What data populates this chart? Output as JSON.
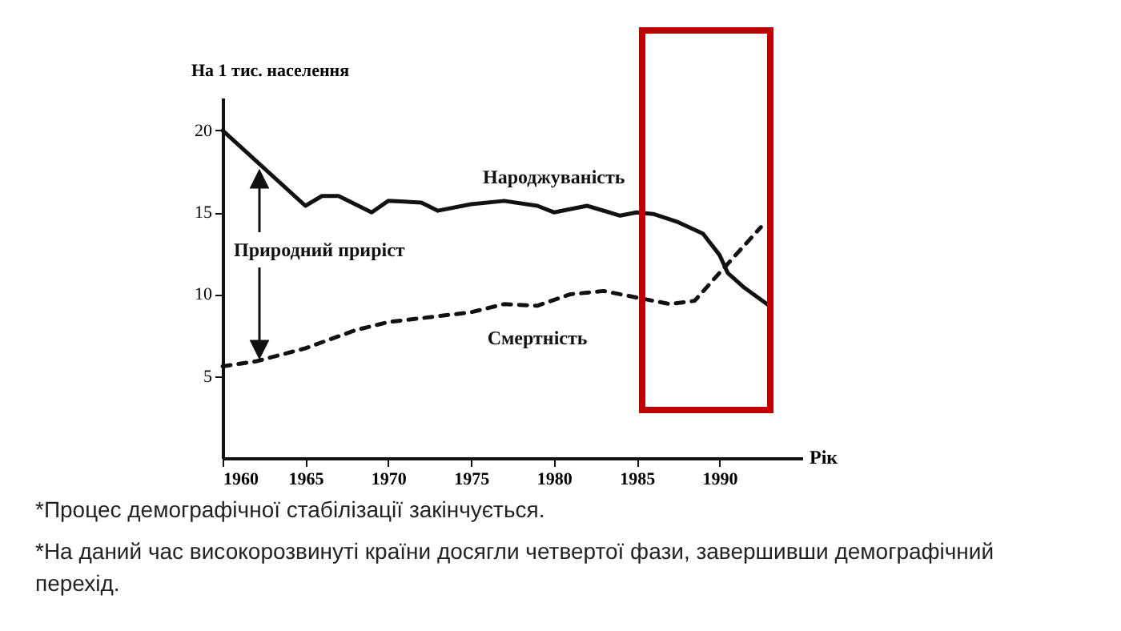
{
  "chart_data": {
    "type": "line",
    "ylabel": "На 1 тис. населення",
    "xlabel": "Рік",
    "x": [
      1960,
      1965,
      1966,
      1967,
      1969,
      1970,
      1972,
      1973,
      1975,
      1977,
      1979,
      1980,
      1982,
      1984,
      1985,
      1986,
      1987.5,
      1989,
      1990,
      1990.5,
      1991.5,
      1993
    ],
    "series": [
      {
        "name": "Народжуваність",
        "color": "#111111",
        "line_style": "solid",
        "values": [
          20,
          15.4,
          16,
          16,
          15,
          15.7,
          15.6,
          15.1,
          15.5,
          15.7,
          15.4,
          15,
          15.4,
          14.8,
          15,
          14.9,
          14.4,
          13.7,
          12.4,
          11.3,
          10.4,
          9.3
        ]
      },
      {
        "name": "Смертність",
        "color": "#111111",
        "line_style": "dashed",
        "x": [
          1960,
          1962,
          1965,
          1968,
          1970,
          1975,
          1977,
          1979,
          1981,
          1983,
          1985,
          1987,
          1988.5,
          1990,
          1992.5
        ],
        "values": [
          5.6,
          5.9,
          6.7,
          7.8,
          8.3,
          8.9,
          9.4,
          9.3,
          10,
          10.2,
          9.8,
          9.4,
          9.6,
          11.3,
          14.1
        ]
      }
    ],
    "xlim": [
      1960,
      1995
    ],
    "xticks": [
      1960,
      1965,
      1970,
      1975,
      1980,
      1985,
      1990
    ],
    "ylim": [
      0,
      22
    ],
    "yticks": [
      5,
      10,
      15,
      20
    ],
    "grid": false,
    "marker": "none",
    "annotations": [
      "Природний приріст",
      "*Процес демографічної стабілізації закінчується.",
      "*На даний час високорозвинуті країни досягли четвертої фази, завершивши демографічний перехід."
    ]
  }
}
